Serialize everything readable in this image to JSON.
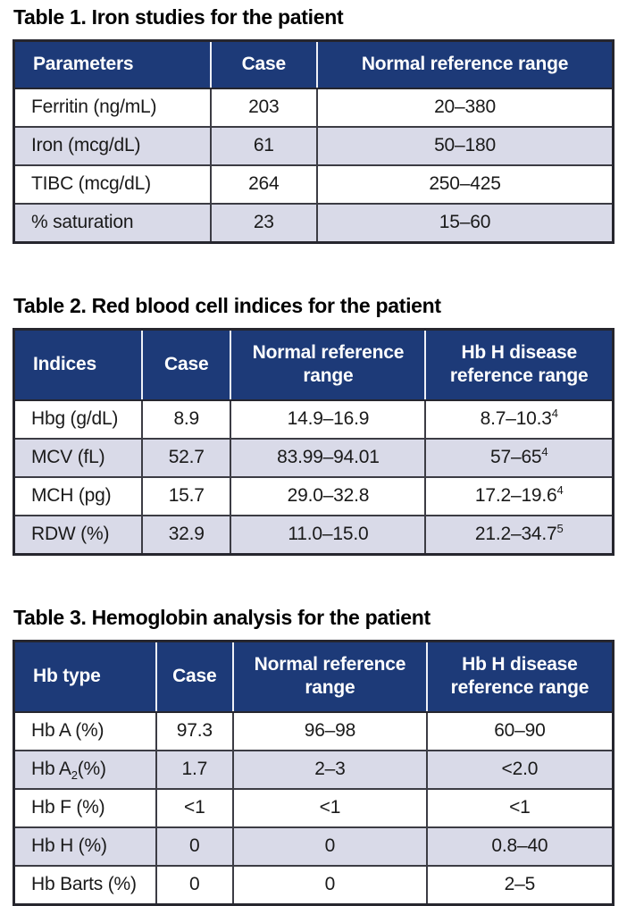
{
  "colors": {
    "header_bg": "#1d3a78",
    "header_text": "#ffffff",
    "row_bg": "#ffffff",
    "row_alt_bg": "#d9dae8",
    "border_dark": "#26262e",
    "inner_line": "#3c3c44",
    "header_divider": "#eef0f7",
    "title_text": "#000000"
  },
  "tables": [
    {
      "title": "Table 1. Iron studies for the patient",
      "columns": [
        "Parameters",
        "Case",
        "Normal reference range"
      ],
      "col_widths": [
        "32.8%",
        "17.8%",
        "49.4%"
      ],
      "rows": [
        [
          "Ferritin (ng/mL)",
          "203",
          "20–380"
        ],
        [
          "Iron (mcg/dL)",
          "61",
          "50–180"
        ],
        [
          "TIBC (mcg/dL)",
          "264",
          "250–425"
        ],
        [
          "% saturation",
          "23",
          "15–60"
        ]
      ]
    },
    {
      "title": "Table 2. Red blood cell indices for the patient",
      "columns": [
        "Indices",
        "Case",
        "Normal reference range",
        "Hb H disease reference range"
      ],
      "col_widths": [
        "21.4%",
        "14.8%",
        "32.5%",
        "31.3%"
      ],
      "rows": [
        [
          "Hbg (g/dL)",
          "8.9",
          "14.9–16.9",
          {
            "t": "8.7–10.3",
            "sup": "4"
          }
        ],
        [
          "MCV (fL)",
          "52.7",
          "83.99–94.01",
          {
            "t": "57–65",
            "sup": "4"
          }
        ],
        [
          "MCH (pg)",
          "15.7",
          "29.0–32.8",
          {
            "t": "17.2–19.6",
            "sup": "4"
          }
        ],
        [
          "RDW (%)",
          "32.9",
          "11.0–15.0",
          {
            "t": "21.2–34.7",
            "sup": "5"
          }
        ]
      ]
    },
    {
      "title": "Table 3. Hemoglobin analysis for the patient",
      "columns": [
        "Hb type",
        "Case",
        "Normal reference range",
        "Hb H disease reference range"
      ],
      "col_widths": [
        "23.7%",
        "12.9%",
        "32.3%",
        "31.1%"
      ],
      "rows": [
        [
          "Hb A (%)",
          "97.3",
          "96–98",
          "60–90"
        ],
        [
          {
            "t": "Hb A",
            "sub": "2",
            "t2": "(%)"
          },
          "1.7",
          "2–3",
          "<2.0"
        ],
        [
          "Hb F (%)",
          "<1",
          "<1",
          "<1"
        ],
        [
          "Hb H (%)",
          "0",
          "0",
          "0.8–40"
        ],
        [
          "Hb Barts (%)",
          "0",
          "0",
          "2–5"
        ]
      ]
    }
  ]
}
